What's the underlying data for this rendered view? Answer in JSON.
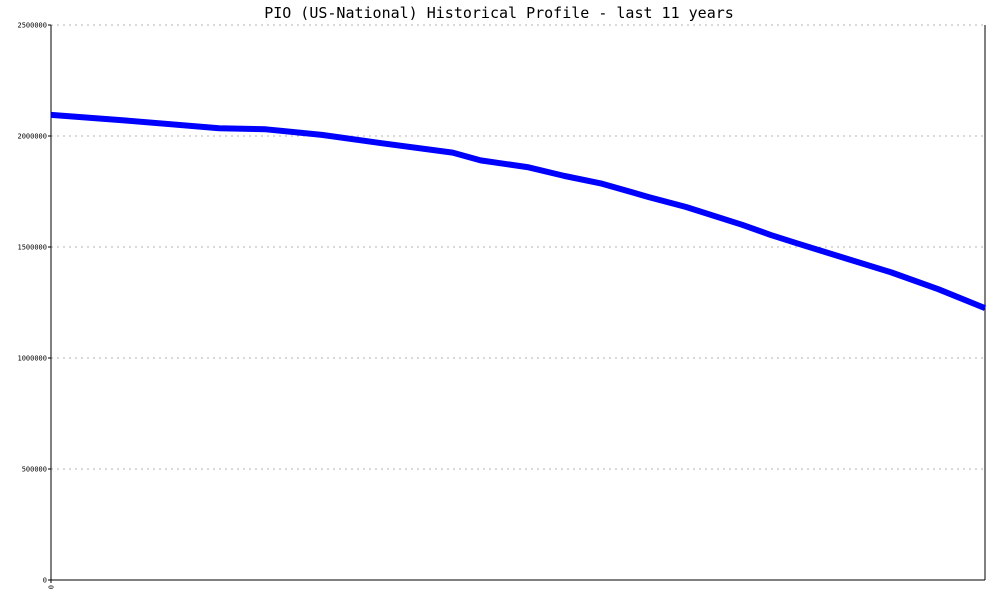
{
  "chart_data": {
    "type": "line",
    "title": "PIO (US-National) Historical Profile - last 11 years",
    "xlabel": "",
    "ylabel": "",
    "ylim": [
      0,
      2500000
    ],
    "y_ticks": [
      0,
      500000,
      1000000,
      1500000,
      2000000,
      2500000
    ],
    "y_tick_labels": [
      "0",
      "500000",
      "1000000",
      "1500000",
      "2000000",
      "2500000"
    ],
    "x_ticks": [
      0
    ],
    "x_tick_labels": [
      "0"
    ],
    "xlim": [
      0,
      1
    ],
    "grid": true,
    "line_color": "#0000ff",
    "series": [
      {
        "values": [
          [
            0.0,
            2095000
          ],
          [
            0.08,
            2070000
          ],
          [
            0.18,
            2035000
          ],
          [
            0.23,
            2030000
          ],
          [
            0.29,
            2005000
          ],
          [
            0.35,
            1970000
          ],
          [
            0.43,
            1925000
          ],
          [
            0.46,
            1890000
          ],
          [
            0.51,
            1860000
          ],
          [
            0.55,
            1820000
          ],
          [
            0.59,
            1785000
          ],
          [
            0.64,
            1725000
          ],
          [
            0.68,
            1680000
          ],
          [
            0.74,
            1600000
          ],
          [
            0.77,
            1555000
          ],
          [
            0.8,
            1515000
          ],
          [
            0.85,
            1450000
          ],
          [
            0.9,
            1385000
          ],
          [
            0.95,
            1310000
          ],
          [
            1.0,
            1225000
          ]
        ]
      }
    ]
  }
}
